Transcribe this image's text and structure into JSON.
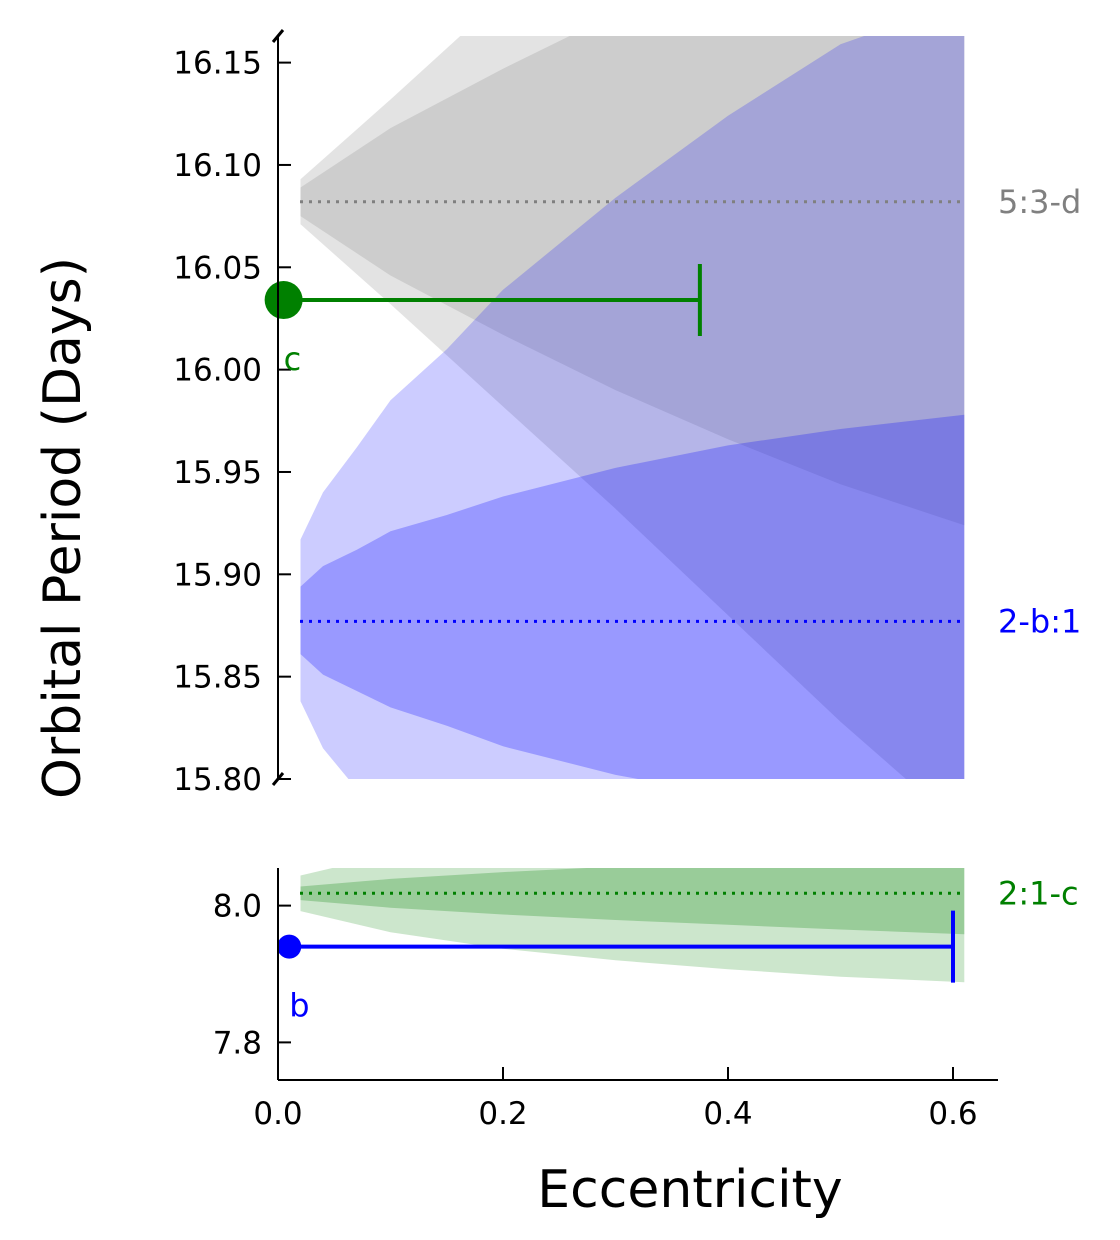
{
  "chart_data": {
    "type": "scatter",
    "xlabel": "Eccentricity",
    "ylabel": "Orbital Period (Days)",
    "xlim": [
      0.0,
      0.64
    ],
    "x_ticks": [
      "0.0",
      "0.2",
      "0.4",
      "0.6"
    ],
    "broken_y_axis": true,
    "upper_panel": {
      "ylim": [
        15.8,
        16.163
      ],
      "y_ticks": [
        "15.80",
        "15.85",
        "15.90",
        "15.95",
        "16.00",
        "16.05",
        "16.10",
        "16.15"
      ],
      "resonance_lines": [
        {
          "label": "5:3-d",
          "period": 16.082,
          "color": "#808080"
        },
        {
          "label": "2-b:1",
          "period": 15.877,
          "color": "#0000ff"
        }
      ],
      "bands": [
        {
          "color": "#808080",
          "outer_opacity": 0.22,
          "inner_opacity": 0.22,
          "e": [
            0.02,
            0.1,
            0.2,
            0.3,
            0.4,
            0.5,
            0.61
          ],
          "outer_low": [
            16.071,
            16.032,
            15.982,
            15.932,
            15.88,
            15.828,
            15.775
          ],
          "outer_high": [
            16.093,
            16.132,
            16.182,
            16.232,
            16.284,
            16.336,
            16.389
          ],
          "inner_low": [
            16.075,
            16.046,
            16.017,
            15.99,
            15.966,
            15.944,
            15.924
          ],
          "inner_high": [
            16.089,
            16.118,
            16.147,
            16.174,
            16.198,
            16.22,
            16.24
          ]
        },
        {
          "color": "#0000ff",
          "outer_opacity": 0.2,
          "inner_opacity": 0.25,
          "e": [
            0.02,
            0.04,
            0.07,
            0.1,
            0.15,
            0.2,
            0.3,
            0.4,
            0.5,
            0.61
          ],
          "outer_low": [
            15.838,
            15.815,
            15.795,
            15.77,
            15.745,
            15.715,
            15.67,
            15.63,
            15.595,
            15.575
          ],
          "outer_high": [
            15.917,
            15.94,
            15.962,
            15.985,
            16.01,
            16.039,
            16.084,
            16.124,
            16.159,
            16.18
          ],
          "inner_low": [
            15.861,
            15.851,
            15.843,
            15.835,
            15.826,
            15.816,
            15.802,
            15.792,
            15.783,
            15.777
          ],
          "inner_high": [
            15.894,
            15.904,
            15.912,
            15.921,
            15.929,
            15.938,
            15.952,
            15.963,
            15.971,
            15.978
          ]
        }
      ],
      "points": [
        {
          "label": "c",
          "e": 0.005,
          "period": 16.034,
          "e_upper": 0.375,
          "color": "#008000",
          "marker_size": "large"
        }
      ]
    },
    "lower_panel": {
      "ylim": [
        7.745,
        8.055
      ],
      "y_ticks": [
        "7.8",
        "8.0"
      ],
      "resonance_lines": [
        {
          "label": "2:1-c",
          "period": 8.018,
          "color": "#008000"
        }
      ],
      "bands": [
        {
          "color": "#008000",
          "outer_opacity": 0.2,
          "inner_opacity": 0.25,
          "e": [
            0.02,
            0.1,
            0.2,
            0.3,
            0.4,
            0.5,
            0.61
          ],
          "outer_low": [
            7.992,
            7.961,
            7.937,
            7.92,
            7.907,
            7.896,
            7.888
          ],
          "outer_high": [
            8.044,
            8.075,
            8.099,
            8.116,
            8.129,
            8.14,
            8.148
          ],
          "inner_low": [
            8.008,
            7.997,
            7.987,
            7.979,
            7.972,
            7.965,
            7.958
          ],
          "inner_high": [
            8.028,
            8.039,
            8.049,
            8.057,
            8.064,
            8.071,
            8.078
          ]
        }
      ],
      "points": [
        {
          "label": "b",
          "e": 0.01,
          "period": 7.94,
          "e_upper": 0.6,
          "color": "#0000ff",
          "marker_size": "small"
        }
      ]
    }
  }
}
